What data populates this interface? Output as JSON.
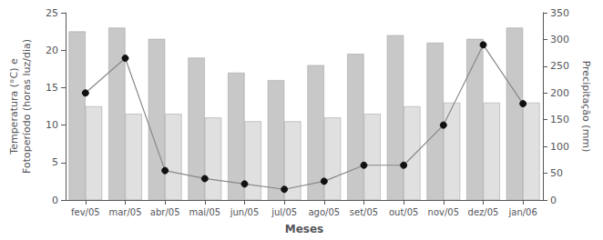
{
  "chart_data": {
    "type": "bar",
    "categories": [
      "fev/05",
      "mar/05",
      "abr/05",
      "mai/05",
      "jun/05",
      "jul/05",
      "ago/05",
      "set/05",
      "out/05",
      "nov/05",
      "dez/05",
      "jan/06"
    ],
    "xlabel": "Meses",
    "ylabel": "Temperatura (°C) e\nFotoperíodo (horas luz/dia)",
    "y2label": "Precipitação (mm)",
    "ylim": [
      0,
      25
    ],
    "yticks": [
      0,
      5,
      10,
      15,
      20,
      25
    ],
    "y2lim": [
      0,
      350
    ],
    "y2ticks": [
      0,
      50,
      100,
      150,
      200,
      250,
      300,
      350
    ],
    "grid": false,
    "series": [
      {
        "type": "bar",
        "color": "#c8c8c8",
        "values": [
          22.5,
          23.0,
          21.5,
          19.0,
          17.0,
          16.0,
          18.0,
          19.5,
          22.0,
          21.0,
          21.5,
          23.0
        ]
      },
      {
        "type": "bar",
        "color": "#e0e0e0",
        "values": [
          12.5,
          11.5,
          11.5,
          11.0,
          10.5,
          10.5,
          11.0,
          11.5,
          12.5,
          13.0,
          13.0,
          13.0
        ]
      },
      {
        "type": "line",
        "axis": "y2",
        "marker": "circle",
        "color": "#888888",
        "values": [
          200,
          265,
          55,
          40,
          30,
          20,
          35,
          65,
          65,
          140,
          290,
          180
        ]
      }
    ]
  }
}
